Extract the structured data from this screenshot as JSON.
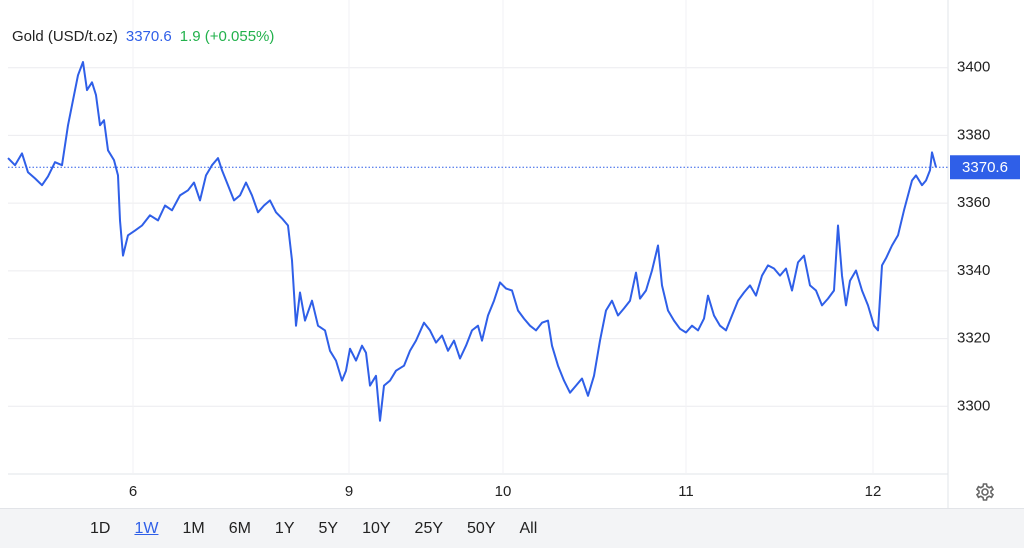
{
  "header": {
    "instrument": "Gold (USD/t.oz)",
    "change": "1.9 (+0.055%)"
  },
  "ranges": [
    "1D",
    "1W",
    "1M",
    "6M",
    "1Y",
    "5Y",
    "10Y",
    "25Y",
    "50Y",
    "All"
  ],
  "active_range": 1,
  "chart_data": {
    "type": "line",
    "last_value": 3370.6,
    "x": [
      8,
      15,
      22,
      28,
      35,
      42,
      48,
      55,
      62,
      68,
      73,
      78,
      83,
      87,
      92,
      96,
      100,
      104,
      108,
      114,
      118,
      120,
      123,
      128,
      135,
      142,
      150,
      158,
      165,
      172,
      180,
      188,
      194,
      200,
      206,
      212,
      218,
      222,
      228,
      234,
      240,
      246,
      252,
      258,
      264,
      270,
      276,
      282,
      288,
      292,
      296,
      300,
      305,
      312,
      318,
      325,
      330,
      336,
      342,
      346,
      350,
      356,
      362,
      366,
      370,
      376,
      380,
      384,
      390,
      396,
      404,
      410,
      416,
      424,
      430,
      436,
      442,
      448,
      454,
      460,
      466,
      472,
      478,
      482,
      488,
      494,
      500,
      506,
      512,
      518,
      524,
      530,
      536,
      542,
      548,
      552,
      558,
      564,
      570,
      576,
      582,
      588,
      594,
      600,
      606,
      612,
      618,
      624,
      630,
      636,
      640,
      646,
      652,
      658,
      662,
      668,
      674,
      680,
      686,
      692,
      698,
      704,
      708,
      714,
      720,
      726,
      732,
      738,
      744,
      750,
      756,
      762,
      768,
      774,
      780,
      786,
      792,
      798,
      804,
      810,
      816,
      822,
      828,
      834,
      838,
      842,
      846,
      850,
      856,
      862,
      868,
      874,
      878,
      882,
      886,
      892,
      898,
      904,
      908,
      912,
      916,
      922,
      926,
      930,
      932,
      936
    ],
    "series": [
      {
        "name": "Gold",
        "color": "#2f5fe8",
        "values": [
          3373.3,
          3371.2,
          3374.7,
          3369.1,
          3367.3,
          3365.3,
          3367.9,
          3372.1,
          3371.2,
          3383.0,
          3390.4,
          3397.8,
          3401.7,
          3393.4,
          3395.7,
          3391.9,
          3383.0,
          3384.5,
          3375.6,
          3372.7,
          3368.2,
          3354.9,
          3344.5,
          3350.5,
          3351.9,
          3353.4,
          3356.4,
          3354.9,
          3359.3,
          3357.9,
          3362.3,
          3363.8,
          3366.1,
          3360.8,
          3368.2,
          3371.2,
          3373.3,
          3369.7,
          3365.3,
          3360.8,
          3362.3,
          3366.1,
          3362.3,
          3357.3,
          3359.3,
          3360.8,
          3357.3,
          3355.5,
          3353.4,
          3343.1,
          3323.8,
          3333.6,
          3325.3,
          3331.2,
          3323.8,
          3322.4,
          3316.4,
          3313.5,
          3307.6,
          3310.5,
          3317.0,
          3313.5,
          3317.9,
          3315.8,
          3306.1,
          3309.0,
          3295.7,
          3306.1,
          3307.6,
          3310.5,
          3312.0,
          3316.4,
          3319.4,
          3324.7,
          3322.4,
          3318.8,
          3320.9,
          3316.4,
          3319.4,
          3314.1,
          3317.9,
          3322.4,
          3323.8,
          3319.4,
          3326.8,
          3331.2,
          3336.6,
          3334.8,
          3334.2,
          3328.3,
          3325.9,
          3323.8,
          3322.4,
          3324.7,
          3325.3,
          3317.9,
          3312.0,
          3307.6,
          3304.0,
          3306.1,
          3308.2,
          3303.1,
          3309.0,
          3319.4,
          3328.3,
          3331.2,
          3326.8,
          3328.9,
          3331.2,
          3339.5,
          3331.8,
          3334.2,
          3340.1,
          3347.5,
          3335.7,
          3328.3,
          3325.3,
          3322.9,
          3321.8,
          3323.8,
          3322.4,
          3325.9,
          3332.7,
          3326.8,
          3323.8,
          3322.4,
          3326.8,
          3331.2,
          3333.6,
          3335.7,
          3332.7,
          3338.6,
          3341.6,
          3340.7,
          3338.6,
          3340.7,
          3334.2,
          3342.5,
          3344.5,
          3335.7,
          3334.2,
          3329.8,
          3331.8,
          3334.2,
          3353.4,
          3338.6,
          3329.8,
          3337.1,
          3340.1,
          3334.2,
          3329.8,
          3323.8,
          3322.4,
          3341.6,
          3343.7,
          3347.5,
          3350.5,
          3357.9,
          3362.3,
          3366.7,
          3368.2,
          3365.3,
          3366.7,
          3369.7,
          3375.0,
          3370.6
        ]
      }
    ],
    "xlim": [
      8,
      948
    ],
    "xticks": [
      {
        "value": 133,
        "label": "6"
      },
      {
        "value": 349,
        "label": "9"
      },
      {
        "value": 503,
        "label": "10"
      },
      {
        "value": 686,
        "label": "11"
      },
      {
        "value": 873,
        "label": "12"
      }
    ],
    "ylim": [
      3280,
      3420
    ],
    "yticks": [
      3300,
      3320,
      3340,
      3360,
      3380,
      3400
    ],
    "grid": true
  }
}
